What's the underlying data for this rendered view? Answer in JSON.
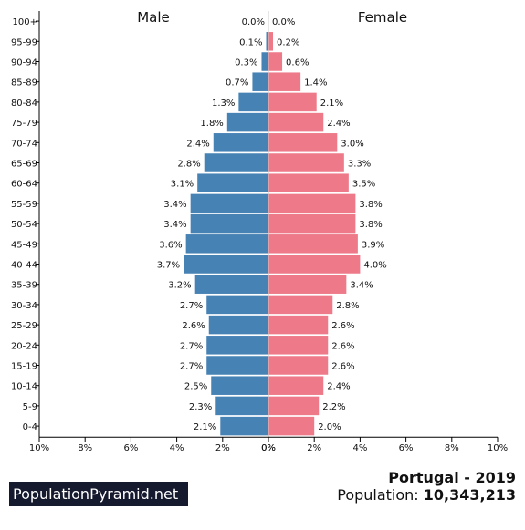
{
  "chart_data": {
    "type": "bar",
    "orientation": "horizontal-population-pyramid",
    "headers": {
      "male": "Male",
      "female": "Female"
    },
    "categories": [
      "100+",
      "95-99",
      "90-94",
      "85-89",
      "80-84",
      "75-79",
      "70-74",
      "65-69",
      "60-64",
      "55-59",
      "50-54",
      "45-49",
      "40-44",
      "35-39",
      "30-34",
      "25-29",
      "20-24",
      "15-19",
      "10-14",
      "5-9",
      "0-4"
    ],
    "series": [
      {
        "name": "Male",
        "color": "#4682b4",
        "values": [
          0.0,
          0.1,
          0.3,
          0.7,
          1.3,
          1.8,
          2.4,
          2.8,
          3.1,
          3.4,
          3.4,
          3.6,
          3.7,
          3.2,
          2.7,
          2.6,
          2.7,
          2.7,
          2.5,
          2.3,
          2.1
        ],
        "labels": [
          "0.0%",
          "0.1%",
          "0.3%",
          "0.7%",
          "1.3%",
          "1.8%",
          "2.4%",
          "2.8%",
          "3.1%",
          "3.4%",
          "3.4%",
          "3.6%",
          "3.7%",
          "3.2%",
          "2.7%",
          "2.6%",
          "2.7%",
          "2.7%",
          "2.5%",
          "2.3%",
          "2.1%"
        ]
      },
      {
        "name": "Female",
        "color": "#ee7989",
        "values": [
          0.0,
          0.2,
          0.6,
          1.4,
          2.1,
          2.4,
          3.0,
          3.3,
          3.5,
          3.8,
          3.8,
          3.9,
          4.0,
          3.4,
          2.8,
          2.6,
          2.6,
          2.6,
          2.4,
          2.2,
          2.0
        ],
        "labels": [
          "0.0%",
          "0.2%",
          "0.6%",
          "1.4%",
          "2.1%",
          "2.4%",
          "3.0%",
          "3.3%",
          "3.5%",
          "3.8%",
          "3.8%",
          "3.9%",
          "4.0%",
          "3.4%",
          "2.8%",
          "2.6%",
          "2.6%",
          "2.6%",
          "2.4%",
          "2.2%",
          "2.0%"
        ]
      }
    ],
    "xlim": [
      -10,
      10
    ],
    "xticks": {
      "left": [
        "10%",
        "8%",
        "6%",
        "4%",
        "2%",
        "0%"
      ],
      "right": [
        "0%",
        "2%",
        "4%",
        "6%",
        "8%",
        "10%"
      ]
    }
  },
  "footer": {
    "brand": "PopulationPyramid.net",
    "country_year": "Portugal - 2019",
    "population_label": "Population:",
    "population_value": "10,343,213"
  }
}
